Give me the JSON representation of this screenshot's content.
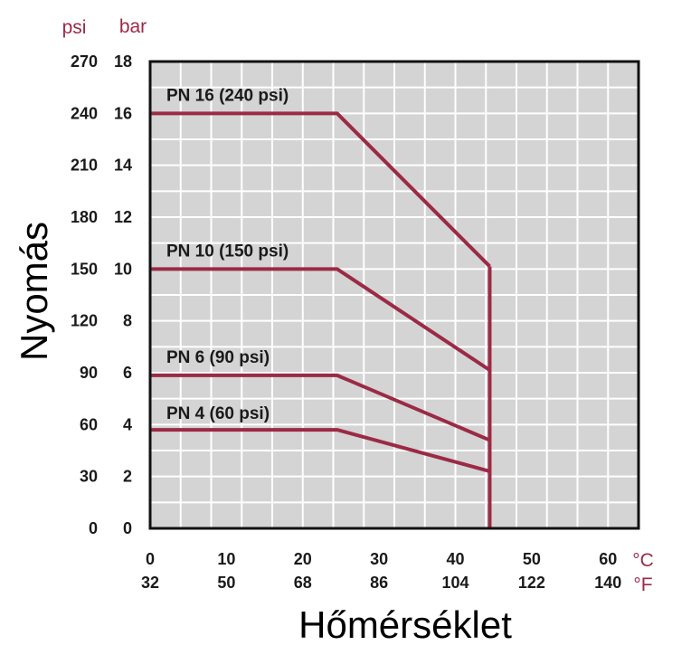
{
  "colors": {
    "plot_background": "#d4d4d4",
    "grid": "#ffffff",
    "frame": "#111111",
    "series": "#9b2a45",
    "unit_text": "#9b2a45"
  },
  "chart_data": {
    "type": "line",
    "xlabel": "Hőmérséklet",
    "ylabel": "Nyomás",
    "x_unit_primary": "°C",
    "x_unit_secondary": "°F",
    "y_unit_left": "psi",
    "y_unit_right": "bar",
    "x_ticks_c": [
      "0",
      "10",
      "20",
      "30",
      "40",
      "50",
      "60"
    ],
    "x_ticks_f": [
      "32",
      "50",
      "68",
      "86",
      "104",
      "122",
      "140"
    ],
    "y_ticks_bar": [
      "0",
      "2",
      "4",
      "6",
      "8",
      "10",
      "12",
      "14",
      "16",
      "18"
    ],
    "y_ticks_psi": [
      "0",
      "30",
      "60",
      "90",
      "120",
      "150",
      "180",
      "210",
      "240",
      "270"
    ],
    "xlim": [
      0,
      64
    ],
    "ylim": [
      0,
      18
    ],
    "grid": true,
    "series": [
      {
        "name": "PN 16 (240 psi)",
        "points": [
          [
            0,
            16
          ],
          [
            24.5,
            16
          ],
          [
            44.5,
            10.1
          ]
        ]
      },
      {
        "name": "PN 10 (150 psi)",
        "points": [
          [
            0,
            10
          ],
          [
            24.5,
            10
          ],
          [
            44.5,
            6.1
          ]
        ]
      },
      {
        "name": "PN 6 (90 psi)",
        "points": [
          [
            0,
            5.9
          ],
          [
            24.5,
            5.9
          ],
          [
            44.5,
            3.4
          ]
        ]
      },
      {
        "name": "PN 4 (60 psi)",
        "points": [
          [
            0,
            3.8
          ],
          [
            24.5,
            3.8
          ],
          [
            44.5,
            2.2
          ]
        ]
      }
    ],
    "limit_line": {
      "x": 44.5,
      "y_range": [
        0,
        10.1
      ]
    }
  }
}
